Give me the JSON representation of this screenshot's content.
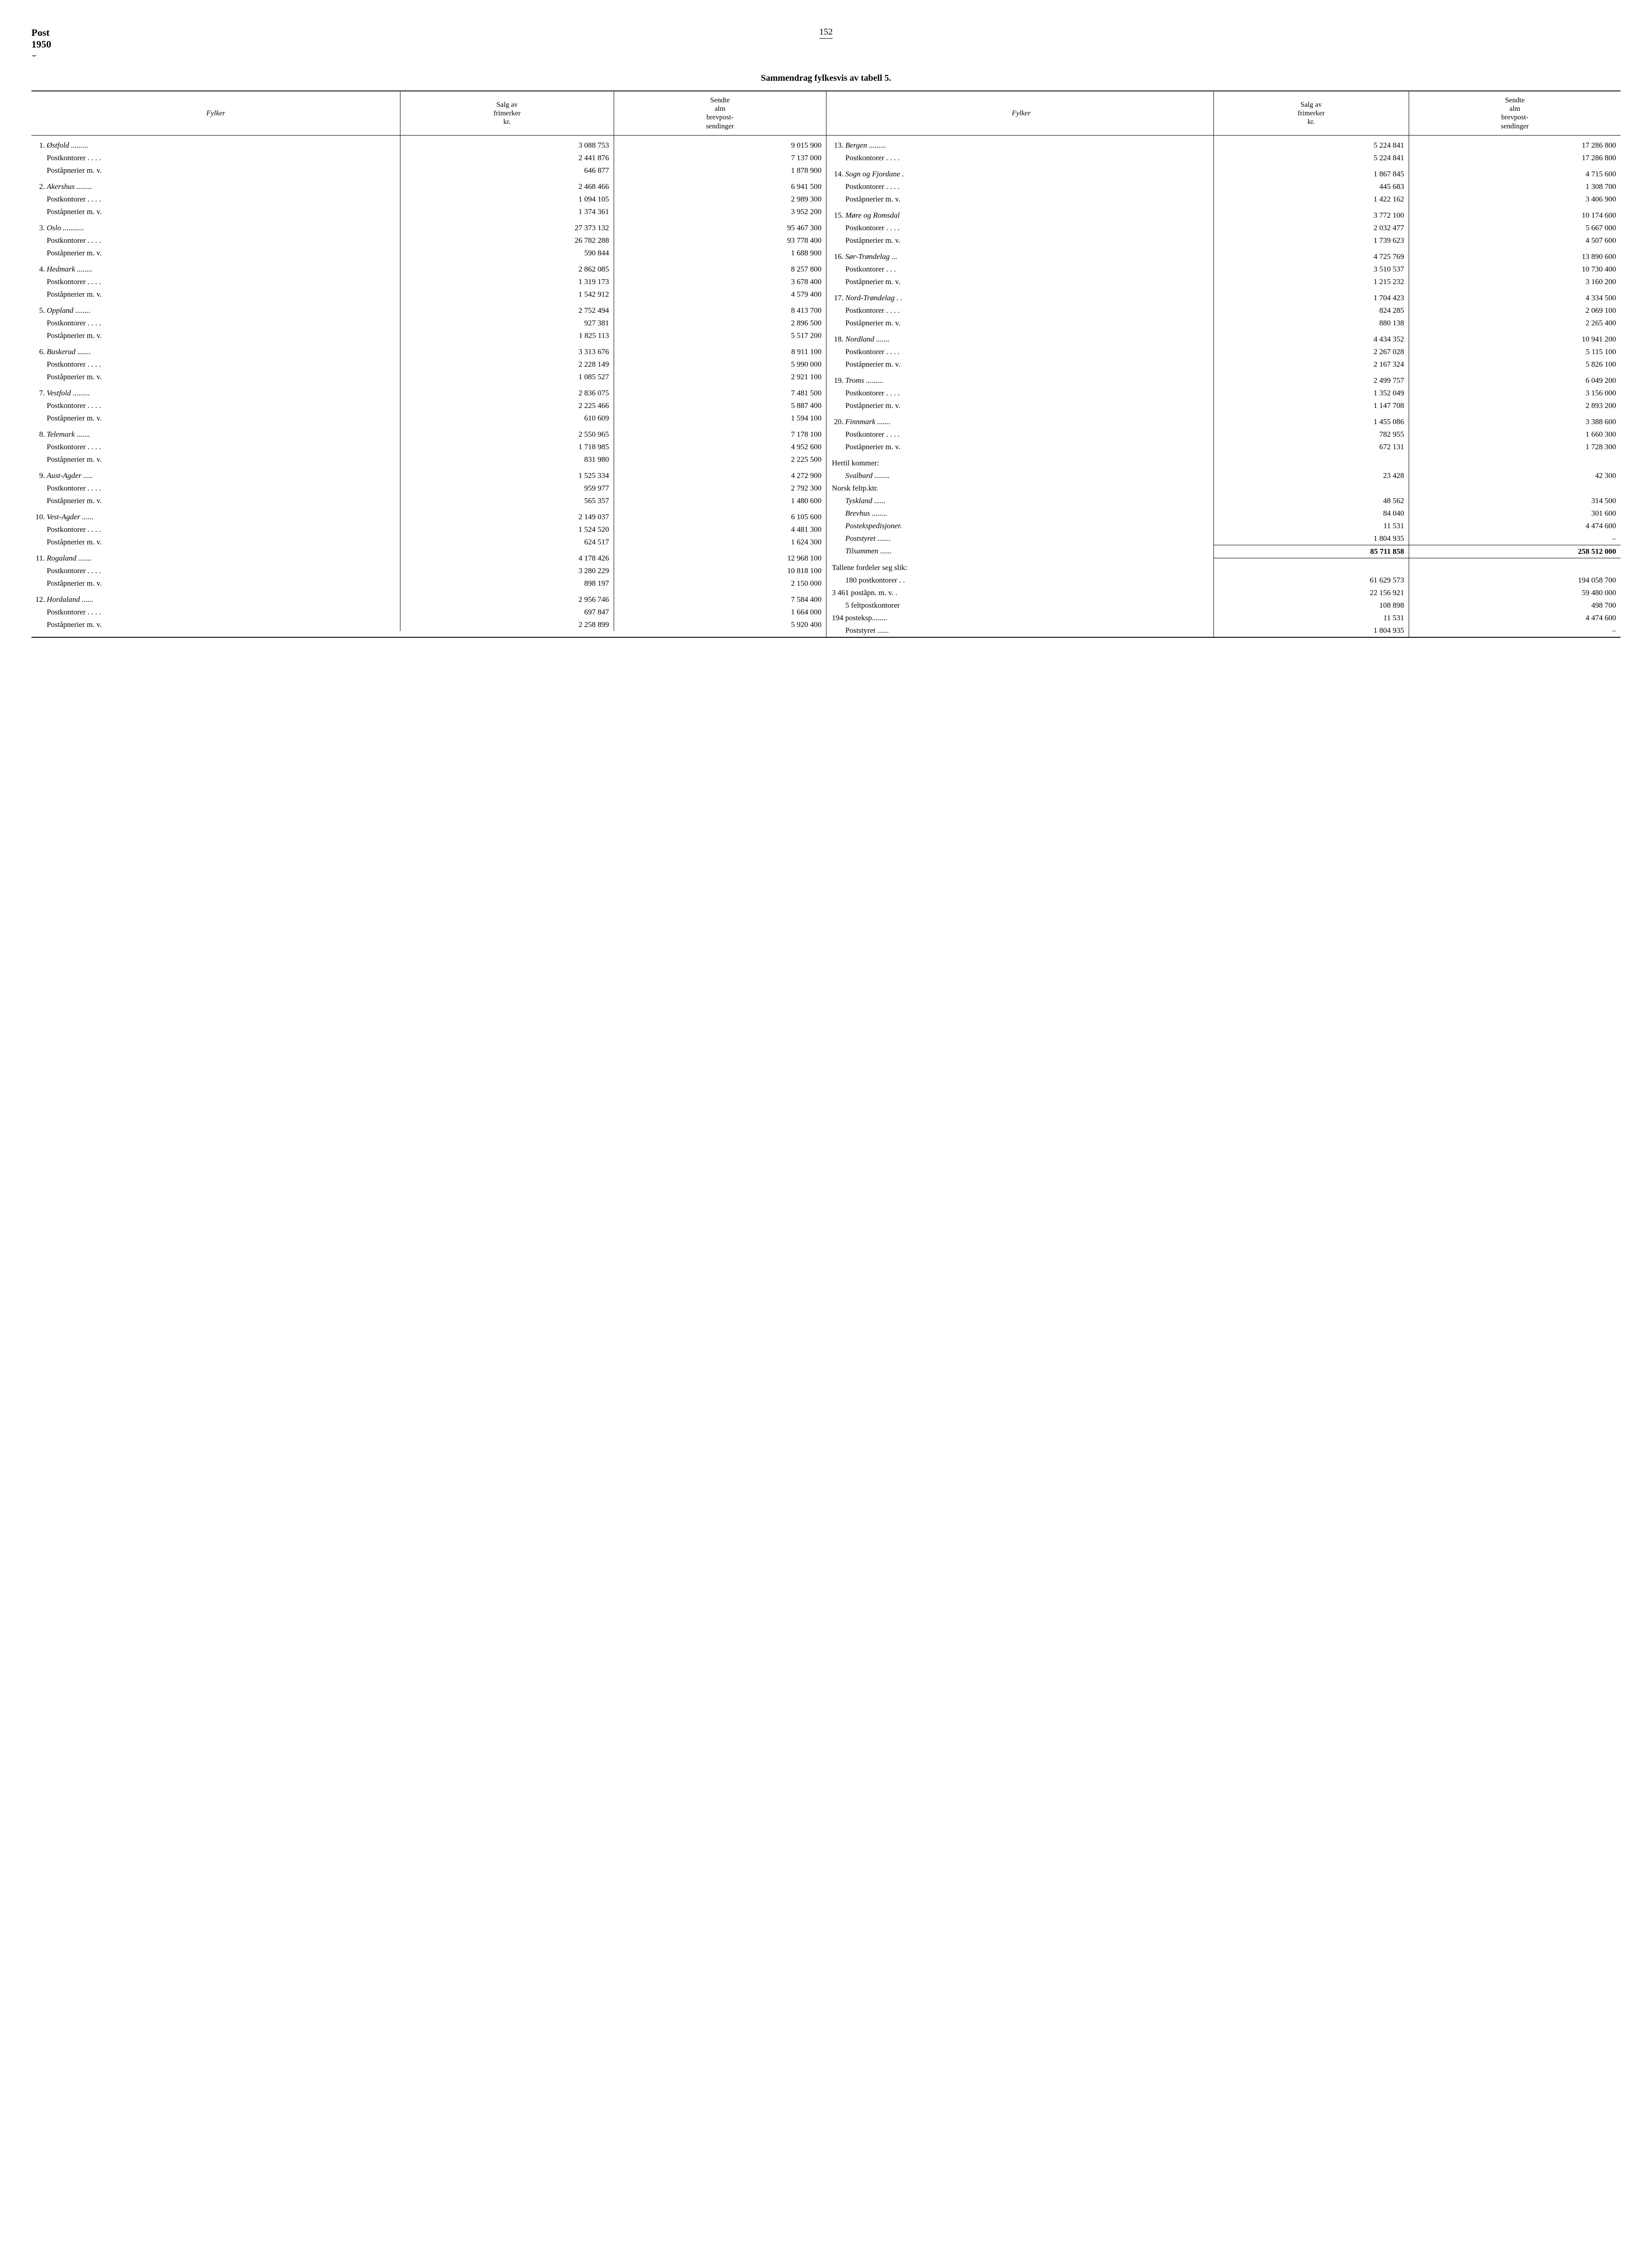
{
  "header": {
    "label_post": "Post",
    "label_year": "1950",
    "page_number": "152",
    "title": "Sammendrag fylkesvis av tabell 5."
  },
  "columns": {
    "fylker": "Fylker",
    "salg": "Salg av\nfrimerker\nkr.",
    "sendte": "Sendte\nalm\nbrevpost-\nsendinger"
  },
  "left": [
    {
      "n": "1.",
      "name": "Østfold",
      "dots": ".........",
      "v1": "3 088 753",
      "v2": "9 015 900",
      "italic": true,
      "spacer": true
    },
    {
      "sub": "Postkontorer . . . .",
      "v1": "2 441 876",
      "v2": "7 137 000"
    },
    {
      "sub": "Poståpnerier m. v.",
      "v1": "646 877",
      "v2": "1 878 900"
    },
    {
      "n": "2.",
      "name": "Akershus",
      "dots": "........",
      "v1": "2 468 466",
      "v2": "6 941 500",
      "italic": true,
      "spacer": true
    },
    {
      "sub": "Postkontorer . . . .",
      "v1": "1 094 105",
      "v2": "2 989 300"
    },
    {
      "sub": "Poståpnerier m. v.",
      "v1": "1 374 361",
      "v2": "3 952 200"
    },
    {
      "n": "3.",
      "name": "Oslo",
      "dots": "...........",
      "v1": "27 373 132",
      "v2": "95 467 300",
      "italic": true,
      "spacer": true
    },
    {
      "sub": "Postkontorer . . . .",
      "v1": "26 782 288",
      "v2": "93 778 400"
    },
    {
      "sub": "Poståpnerier m. v.",
      "v1": "590 844",
      "v2": "1 688 900"
    },
    {
      "n": "4.",
      "name": "Hedmark",
      "dots": "........",
      "v1": "2 862 085",
      "v2": "8 257 800",
      "italic": true,
      "spacer": true
    },
    {
      "sub": "Postkontorer . . . .",
      "v1": "1 319 173",
      "v2": "3 678 400"
    },
    {
      "sub": "Poståpnerier m. v.",
      "v1": "1 542 912",
      "v2": "4 579 400"
    },
    {
      "n": "5.",
      "name": "Oppland",
      "dots": "........",
      "v1": "2 752 494",
      "v2": "8 413 700",
      "italic": true,
      "spacer": true
    },
    {
      "sub": "Postkontorer . . . .",
      "v1": "927 381",
      "v2": "2 896 500"
    },
    {
      "sub": "Poståpnerier m. v.",
      "v1": "1 825 113",
      "v2": "5 517 200"
    },
    {
      "n": "6.",
      "name": "Buskerud",
      "dots": ".......",
      "v1": "3 313 676",
      "v2": "8 911 100",
      "italic": true,
      "spacer": true
    },
    {
      "sub": "Postkontorer . . . .",
      "v1": "2 228 149",
      "v2": "5 990 000"
    },
    {
      "sub": "Poståpnerier m. v.",
      "v1": "1 085 527",
      "v2": "2 921 100"
    },
    {
      "n": "7.",
      "name": "Vestfold",
      "dots": ".........",
      "v1": "2 836 075",
      "v2": "7 481 500",
      "italic": true,
      "spacer": true
    },
    {
      "sub": "Postkontorer . . . .",
      "v1": "2 225 466",
      "v2": "5 887 400"
    },
    {
      "sub": "Poståpnerier m. v.",
      "v1": "610 609",
      "v2": "1 594 100"
    },
    {
      "n": "8.",
      "name": "Telemark",
      "dots": ".......",
      "v1": "2 550 965",
      "v2": "7 178 100",
      "italic": true,
      "spacer": true
    },
    {
      "sub": "Postkontorer . . . .",
      "v1": "1 718 985",
      "v2": "4 952 600"
    },
    {
      "sub": "Poståpnerier m. v.",
      "v1": "831 980",
      "v2": "2 225 500"
    },
    {
      "n": "9.",
      "name": "Aust-Agder",
      "dots": ".....",
      "v1": "1 525 334",
      "v2": "4 272 900",
      "italic": true,
      "spacer": true
    },
    {
      "sub": "Postkontorer . . . .",
      "v1": "959 977",
      "v2": "2 792 300"
    },
    {
      "sub": "Poståpnerier m. v.",
      "v1": "565 357",
      "v2": "1 480 600"
    },
    {
      "n": "10.",
      "name": "Vest-Agder",
      "dots": "......",
      "v1": "2 149 037",
      "v2": "6 105 600",
      "italic": true,
      "spacer": true
    },
    {
      "sub": "Postkontorer . . . .",
      "v1": "1 524 520",
      "v2": "4 481 300"
    },
    {
      "sub": "Poståpnerier m. v.",
      "v1": "624 517",
      "v2": "1 624 300"
    },
    {
      "n": "11.",
      "name": "Rogaland",
      "dots": ".......",
      "v1": "4 178 426",
      "v2": "12 968 100",
      "italic": true,
      "spacer": true
    },
    {
      "sub": "Postkontorer . . . .",
      "v1": "3 280 229",
      "v2": "10 818 100"
    },
    {
      "sub": "Poståpnerier m. v.",
      "v1": "898 197",
      "v2": "2 150 000"
    },
    {
      "n": "12.",
      "name": "Hordaland",
      "dots": "......",
      "v1": "2 956 746",
      "v2": "7 584 400",
      "italic": true,
      "spacer": true
    },
    {
      "sub": "Postkontorer . . . .",
      "v1": "697 847",
      "v2": "1 664 000"
    },
    {
      "sub": "Poståpnerier m. v.",
      "v1": "2 258 899",
      "v2": "5 920 400"
    }
  ],
  "right": [
    {
      "n": "13.",
      "name": "Bergen",
      "dots": ".........",
      "v1": "5 224 841",
      "v2": "17 286 800",
      "italic": true,
      "spacer": true
    },
    {
      "sub": "Postkontorer . . . .",
      "v1": "5 224 841",
      "v2": "17 286 800"
    },
    {
      "n": "14.",
      "name": "Sogn og Fjordane",
      "dots": ".",
      "v1": "1 867 845",
      "v2": "4 715 600",
      "italic": true,
      "spacer": true
    },
    {
      "sub": "Postkontorer . . . .",
      "v1": "445 683",
      "v2": "1 308 700"
    },
    {
      "sub": "Poståpnerier m. v.",
      "v1": "1 422 162",
      "v2": "3 406 900"
    },
    {
      "n": "15.",
      "name": "Møre og Romsdal",
      "dots": "",
      "v1": "3 772 100",
      "v2": "10 174 600",
      "italic": true,
      "spacer": true
    },
    {
      "sub": "Postkontorer . . . .",
      "v1": "2 032 477",
      "v2": "5 667 000"
    },
    {
      "sub": "Poståpnerier m. v.",
      "v1": "1 739 623",
      "v2": "4 507 600"
    },
    {
      "n": "16.",
      "name": "Sør-Trøndelag",
      "dots": "...",
      "v1": "4 725 769",
      "v2": "13 890 600",
      "italic": true,
      "spacer": true
    },
    {
      "sub": "Postkontorer . . .",
      "v1": "3 510 537",
      "v2": "10 730 400"
    },
    {
      "sub": "Poståpnerier m. v.",
      "v1": "1 215 232",
      "v2": "3 160 200"
    },
    {
      "n": "17.",
      "name": "Nord-Trøndelag",
      "dots": ". .",
      "v1": "1 704 423",
      "v2": "4 334 500",
      "italic": true,
      "spacer": true
    },
    {
      "sub": "Postkontorer . . . .",
      "v1": "824 285",
      "v2": "2 069 100"
    },
    {
      "sub": "Poståpnerier m. v.",
      "v1": "880 138",
      "v2": "2 265 400"
    },
    {
      "n": "18.",
      "name": "Nordland",
      "dots": ".......",
      "v1": "4 434 352",
      "v2": "10 941 200",
      "italic": true,
      "spacer": true
    },
    {
      "sub": "Postkontorer . . . .",
      "v1": "2 267 028",
      "v2": "5 115 100"
    },
    {
      "sub": "Poståpnerier m. v.",
      "v1": "2 167 324",
      "v2": "5 826 100"
    },
    {
      "n": "19.",
      "name": "Troms",
      "dots": ".........",
      "v1": "2 499 757",
      "v2": "6 049 200",
      "italic": true,
      "spacer": true
    },
    {
      "sub": "Postkontorer . . . .",
      "v1": "1 352 049",
      "v2": "3 156 000"
    },
    {
      "sub": "Poståpnerier m. v.",
      "v1": "1 147 708",
      "v2": "2 893 200"
    },
    {
      "n": "20.",
      "name": "Finnmark",
      "dots": ".......",
      "v1": "1 455 086",
      "v2": "3 388 600",
      "italic": true,
      "spacer": true
    },
    {
      "sub": "Postkontorer . . . .",
      "v1": "782 955",
      "v2": "1 660 300"
    },
    {
      "sub": "Poståpnerier m. v.",
      "v1": "672 131",
      "v2": "1 728 300"
    },
    {
      "extra": "Hertil kommer:",
      "v1": "",
      "v2": "",
      "spacer": true
    },
    {
      "subi": "Svalbard ........",
      "v1": "23  428",
      "v2": "42 300"
    },
    {
      "extra": "Norsk feltp.ktr.",
      "v1": "",
      "v2": ""
    },
    {
      "subi": "Tyskland ......",
      "v1": "48 562",
      "v2": "314 500"
    },
    {
      "subi": "Brevhus ........",
      "v1": "84 040",
      "v2": "301 600"
    },
    {
      "subi": "Postekspedisjoner.",
      "v1": "11 531",
      "v2": "4 474 600"
    },
    {
      "subi": "Poststyret .......",
      "v1": "1 804 935",
      "v2": "–"
    },
    {
      "subi": "Tilsammen ......",
      "v1": "85 711 858",
      "v2": "258 512 000",
      "total": true
    },
    {
      "extra": "Tallene fordeler seg slik:",
      "v1": "",
      "v2": "",
      "spacer": true
    },
    {
      "sub": "180 postkontorer . .",
      "v1": "61 629 573",
      "v2": "194 058 700"
    },
    {
      "extra": "3 461 poståpn. m. v. .",
      "v1": "22 156 921",
      "v2": "59 480 000"
    },
    {
      "sub": "5 feltpostkontorer",
      "v1": "108 898",
      "v2": "498 700"
    },
    {
      "extra": "194 posteksp........",
      "v1": "11 531",
      "v2": "4 474 600"
    },
    {
      "sub": "Poststyret ......",
      "v1": "1 804 935",
      "v2": "–"
    }
  ]
}
